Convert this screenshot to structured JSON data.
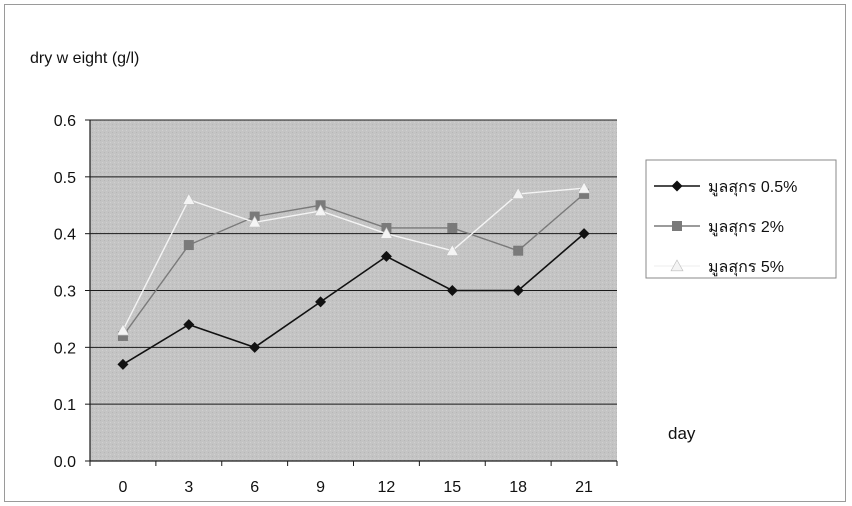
{
  "chart_data": {
    "type": "line",
    "ylabel": "dry w eight (g/l)",
    "xlabel": "day",
    "x": [
      0,
      3,
      6,
      9,
      12,
      15,
      18,
      21
    ],
    "ylim": [
      0.0,
      0.6
    ],
    "yticks": [
      "0.0",
      "0.1",
      "0.2",
      "0.3",
      "0.4",
      "0.5",
      "0.6"
    ],
    "grid": true,
    "legend_position": "right",
    "series": [
      {
        "name": "มูลสุกร 0.5%",
        "marker": "diamond",
        "color": "#111111",
        "values": [
          0.17,
          0.24,
          0.2,
          0.28,
          0.36,
          0.3,
          0.3,
          0.4
        ]
      },
      {
        "name": "มูลสุกร 2%",
        "marker": "square",
        "color": "#7a7a7a",
        "values": [
          0.22,
          0.38,
          0.43,
          0.45,
          0.41,
          0.41,
          0.37,
          0.47
        ]
      },
      {
        "name": "มูลสุกร 5%",
        "marker": "triangle",
        "color": "#f4f4f4",
        "values": [
          0.23,
          0.46,
          0.42,
          0.44,
          0.4,
          0.37,
          0.47,
          0.48
        ]
      }
    ]
  }
}
